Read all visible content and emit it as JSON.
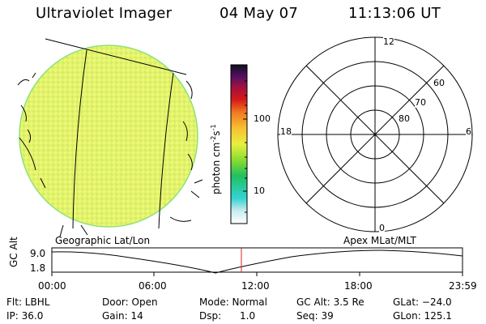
{
  "header": {
    "title": "Ultraviolet Imager",
    "date": "04 May 07",
    "time": "11:13:06 UT"
  },
  "colorbar": {
    "label": "photon cm",
    "label_sup1": "-2",
    "label_s": "s",
    "label_sup2": "-1",
    "tick_100": "100",
    "tick_10": "10"
  },
  "polar": {
    "mlt_top": "12",
    "mlt_left": "18",
    "mlt_right": "6",
    "mlt_bottom": "0",
    "lat_60": "60",
    "lat_70": "70",
    "lat_80": "80"
  },
  "panel_labels": {
    "left": "Geographic Lat/Lon",
    "right": "Apex MLat/MLT"
  },
  "altitude_plot": {
    "ylabel": "GC Alt",
    "ytick_top": "9.0",
    "ytick_bottom": "1.8",
    "xticks": [
      "00:00",
      "06:00",
      "12:00",
      "18:00",
      "23:59"
    ]
  },
  "info": {
    "flt": "Flt: LBHL",
    "ip": "IP: 36.0",
    "door": "Door: Open",
    "gain": "Gain: 14",
    "mode": "Mode: Normal",
    "dsp": "Dsp:      1.0",
    "gcalt": "GC Alt: 3.5 Re",
    "seq": "Seq: 39",
    "glat": "GLat: −24.0",
    "glon": "GLon: 125.1"
  },
  "colors": {
    "disk_fill": "#e8f56a",
    "disk_edge": "#9fe06a",
    "marker_line": "#e02020"
  }
}
